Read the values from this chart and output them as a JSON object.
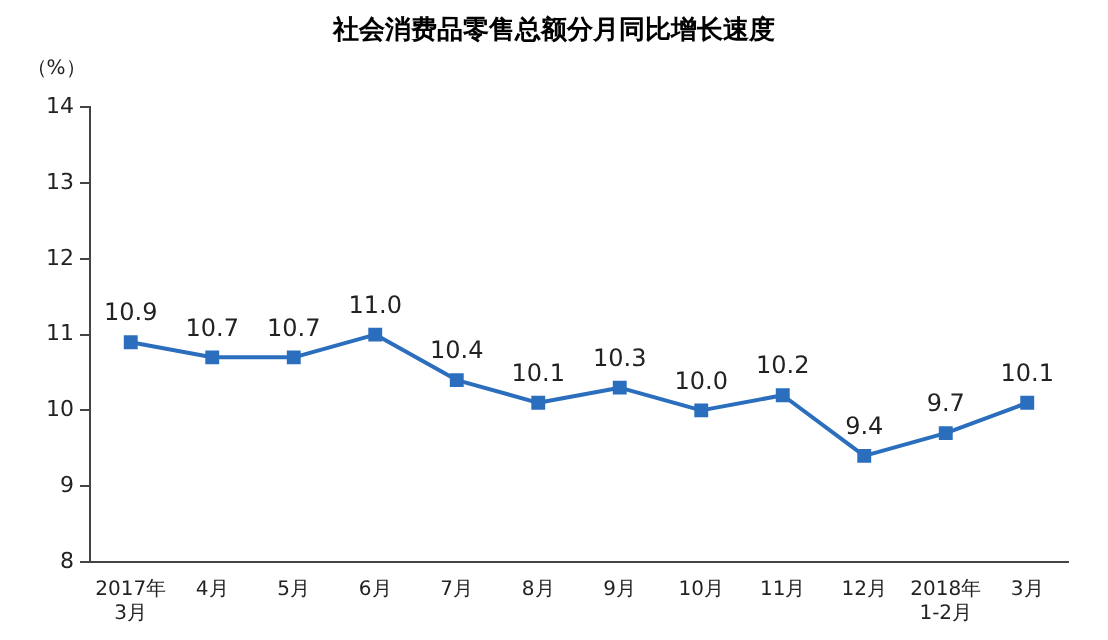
{
  "chart_data": {
    "type": "line",
    "title": "社会消费品零售总额分月同比增长速度",
    "ylabel": "（%）",
    "categories": [
      "2017年\n3月",
      "4月",
      "5月",
      "6月",
      "7月",
      "8月",
      "9月",
      "10月",
      "11月",
      "12月",
      "2018年\n1-2月",
      "3月"
    ],
    "series": [
      {
        "color": "#2a6ebd",
        "values": [
          10.9,
          10.7,
          10.7,
          11.0,
          10.4,
          10.1,
          10.3,
          10.0,
          10.2,
          9.4,
          9.7,
          10.1
        ],
        "value_labels": [
          "10.9",
          "10.7",
          "10.7",
          "11.0",
          "10.4",
          "10.1",
          "10.3",
          "10.0",
          "10.2",
          "9.4",
          "9.7",
          "10.1"
        ]
      }
    ],
    "ylim": [
      8,
      14
    ],
    "yticks": [
      8,
      9,
      10,
      11,
      12,
      13,
      14
    ],
    "grid": false,
    "legend": false,
    "marker": "square",
    "line_style": "solid"
  }
}
